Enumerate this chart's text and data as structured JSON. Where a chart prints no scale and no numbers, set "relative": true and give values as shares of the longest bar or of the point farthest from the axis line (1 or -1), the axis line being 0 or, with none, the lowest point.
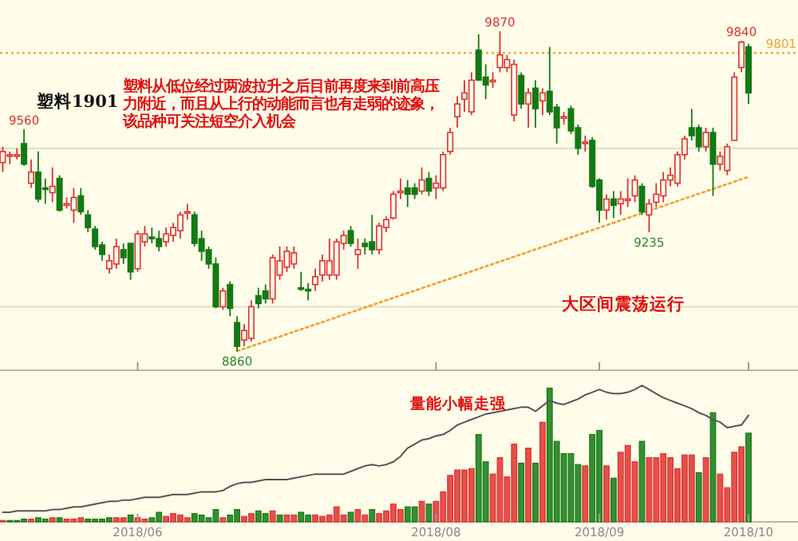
{
  "chart_data": [
    {
      "type": "candlestick",
      "title": "塑料1901",
      "categories": [
        null,
        null,
        null,
        null,
        null,
        null,
        null,
        null,
        null,
        null,
        null,
        null,
        null,
        null,
        null,
        null,
        null,
        null,
        null,
        "2018/06",
        null,
        null,
        null,
        null,
        null,
        null,
        null,
        null,
        null,
        null,
        null,
        null,
        null,
        null,
        null,
        null,
        null,
        null,
        null,
        null,
        null,
        null,
        null,
        null,
        null,
        null,
        null,
        null,
        null,
        null,
        null,
        null,
        null,
        null,
        null,
        null,
        null,
        null,
        null,
        null,
        null,
        "2018/08",
        null,
        null,
        null,
        null,
        null,
        null,
        null,
        null,
        null,
        null,
        null,
        null,
        null,
        null,
        null,
        null,
        null,
        null,
        null,
        null,
        null,
        null,
        "2018/09",
        null,
        null,
        null,
        null,
        null,
        null,
        null,
        null,
        null,
        null,
        null,
        null,
        null,
        null,
        null,
        null,
        null,
        null,
        null,
        null,
        "2018/10"
      ],
      "ohlc": [
        [
          9455,
          9505,
          9425,
          9490
        ],
        [
          9475,
          9490,
          9450,
          9480
        ],
        [
          9475,
          9500,
          9465,
          9480
        ],
        [
          9515,
          9560,
          9445,
          9450
        ],
        [
          9390,
          9465,
          9375,
          9425
        ],
        [
          9425,
          9490,
          9330,
          9340
        ],
        [
          9375,
          9405,
          9325,
          9370
        ],
        [
          9360,
          9440,
          9330,
          9380
        ],
        [
          9405,
          9415,
          9300,
          9305
        ],
        [
          9320,
          9345,
          9310,
          9325
        ],
        [
          9305,
          9375,
          9265,
          9345
        ],
        [
          9350,
          9375,
          9290,
          9300
        ],
        [
          9290,
          9305,
          9235,
          9250
        ],
        [
          9245,
          9255,
          9180,
          9190
        ],
        [
          9195,
          9205,
          9145,
          9165
        ],
        [
          9120,
          9165,
          9105,
          9145
        ],
        [
          9135,
          9215,
          9120,
          9190
        ],
        [
          9180,
          9200,
          9135,
          9155
        ],
        [
          9200,
          9200,
          9085,
          9110
        ],
        [
          9120,
          9240,
          9110,
          9230
        ],
        [
          9205,
          9255,
          9190,
          9230
        ],
        [
          9220,
          9250,
          9200,
          9215
        ],
        [
          9215,
          9240,
          9175,
          9190
        ],
        [
          9205,
          9250,
          9190,
          9230
        ],
        [
          9225,
          9265,
          9205,
          9250
        ],
        [
          9240,
          9300,
          9215,
          9290
        ],
        [
          9295,
          9325,
          9275,
          9300
        ],
        [
          9290,
          9300,
          9190,
          9200
        ],
        [
          9215,
          9240,
          9145,
          9175
        ],
        [
          9180,
          9190,
          9120,
          9135
        ],
        [
          9135,
          9155,
          8995,
          9000
        ],
        [
          9000,
          9060,
          8990,
          9050
        ],
        [
          9070,
          9080,
          8970,
          8995
        ],
        [
          8950,
          8970,
          8860,
          8875
        ],
        [
          8895,
          8945,
          8875,
          8925
        ],
        [
          8900,
          9020,
          8890,
          9000
        ],
        [
          9035,
          9060,
          8995,
          9010
        ],
        [
          9050,
          9070,
          9010,
          9025
        ],
        [
          9025,
          9165,
          9010,
          9155
        ],
        [
          9100,
          9190,
          9085,
          9145
        ],
        [
          9125,
          9190,
          9110,
          9175
        ],
        [
          9135,
          9190,
          9120,
          9170
        ],
        [
          9060,
          9110,
          9050,
          9055
        ],
        [
          9055,
          9075,
          9020,
          9050
        ],
        [
          9070,
          9120,
          9050,
          9095
        ],
        [
          9100,
          9165,
          9080,
          9145
        ],
        [
          9100,
          9215,
          9085,
          9145
        ],
        [
          9100,
          9215,
          9085,
          9205
        ],
        [
          9200,
          9240,
          9180,
          9225
        ],
        [
          9240,
          9255,
          9190,
          9200
        ],
        [
          9165,
          9215,
          9120,
          9180
        ],
        [
          9200,
          9215,
          9165,
          9190
        ],
        [
          9205,
          9290,
          9165,
          9180
        ],
        [
          9180,
          9265,
          9165,
          9255
        ],
        [
          9250,
          9285,
          9235,
          9275
        ],
        [
          9280,
          9365,
          9275,
          9355
        ],
        [
          9360,
          9405,
          9340,
          9365
        ],
        [
          9375,
          9400,
          9315,
          9355
        ],
        [
          9375,
          9390,
          9340,
          9355
        ],
        [
          9365,
          9440,
          9355,
          9400
        ],
        [
          9405,
          9425,
          9350,
          9365
        ],
        [
          9375,
          9415,
          9340,
          9390
        ],
        [
          9375,
          9490,
          9365,
          9480
        ],
        [
          9490,
          9565,
          9480,
          9550
        ],
        [
          9600,
          9665,
          9565,
          9640
        ],
        [
          9655,
          9715,
          9615,
          9675
        ],
        [
          9615,
          9740,
          9605,
          9715
        ],
        [
          9810,
          9860,
          9715,
          9715
        ],
        [
          9725,
          9765,
          9655,
          9700
        ],
        [
          9710,
          9740,
          9690,
          9715
        ],
        [
          9755,
          9870,
          9740,
          9795
        ],
        [
          9755,
          9795,
          9740,
          9780
        ],
        [
          9605,
          9780,
          9585,
          9765
        ],
        [
          9730,
          9740,
          9625,
          9640
        ],
        [
          9640,
          9690,
          9565,
          9675
        ],
        [
          9690,
          9715,
          9565,
          9625
        ],
        [
          9650,
          9690,
          9605,
          9675
        ],
        [
          9680,
          9820,
          9605,
          9615
        ],
        [
          9630,
          9640,
          9515,
          9565
        ],
        [
          9595,
          9615,
          9575,
          9600
        ],
        [
          9625,
          9635,
          9545,
          9555
        ],
        [
          9565,
          9575,
          9480,
          9500
        ],
        [
          9515,
          9540,
          9490,
          9520
        ],
        [
          9525,
          9535,
          9375,
          9380
        ],
        [
          9400,
          9405,
          9265,
          9305
        ],
        [
          9305,
          9355,
          9275,
          9340
        ],
        [
          9340,
          9365,
          9280,
          9320
        ],
        [
          9325,
          9365,
          9290,
          9340
        ],
        [
          9335,
          9405,
          9315,
          9340
        ],
        [
          9350,
          9415,
          9330,
          9400
        ],
        [
          9380,
          9390,
          9290,
          9300
        ],
        [
          9290,
          9340,
          9235,
          9325
        ],
        [
          9330,
          9390,
          9315,
          9355
        ],
        [
          9350,
          9425,
          9330,
          9400
        ],
        [
          9400,
          9440,
          9380,
          9415
        ],
        [
          9390,
          9490,
          9380,
          9480
        ],
        [
          9480,
          9540,
          9465,
          9530
        ],
        [
          9565,
          9625,
          9525,
          9540
        ],
        [
          9565,
          9575,
          9490,
          9505
        ],
        [
          9505,
          9565,
          9490,
          9550
        ],
        [
          9550,
          9565,
          9350,
          9450
        ],
        [
          9450,
          9490,
          9430,
          9475
        ],
        [
          9430,
          9515,
          9415,
          9505
        ],
        [
          9525,
          9740,
          9525,
          9725
        ],
        [
          9755,
          9840,
          9740,
          9835
        ],
        [
          9820,
          9830,
          9640,
          9675
        ]
      ],
      "colors": [
        "#e0312f",
        "#e0312f",
        "#e0312f",
        "#137a13",
        "#e0312f",
        "#137a13",
        "#137a13",
        "#e0312f",
        "#137a13",
        "#e0312f",
        "#e0312f",
        "#137a13",
        "#137a13",
        "#137a13",
        "#137a13",
        "#e0312f",
        "#e0312f",
        "#137a13",
        "#137a13",
        "#e0312f",
        "#e0312f",
        "#137a13",
        "#137a13",
        "#e0312f",
        "#e0312f",
        "#e0312f",
        "#e0312f",
        "#137a13",
        "#137a13",
        "#137a13",
        "#137a13",
        "#e0312f",
        "#137a13",
        "#137a13",
        "#e0312f",
        "#e0312f",
        "#137a13",
        "#137a13",
        "#e0312f",
        "#e0312f",
        "#e0312f",
        "#e0312f",
        "#137a13",
        "#137a13",
        "#e0312f",
        "#e0312f",
        "#e0312f",
        "#e0312f",
        "#e0312f",
        "#137a13",
        "#e0312f",
        "#137a13",
        "#137a13",
        "#e0312f",
        "#e0312f",
        "#e0312f",
        "#e0312f",
        "#137a13",
        "#137a13",
        "#e0312f",
        "#137a13",
        "#e0312f",
        "#e0312f",
        "#e0312f",
        "#e0312f",
        "#e0312f",
        "#e0312f",
        "#137a13",
        "#137a13",
        "#e0312f",
        "#e0312f",
        "#e0312f",
        "#e0312f",
        "#137a13",
        "#e0312f",
        "#137a13",
        "#e0312f",
        "#137a13",
        "#137a13",
        "#e0312f",
        "#137a13",
        "#137a13",
        "#e0312f",
        "#137a13",
        "#137a13",
        "#e0312f",
        "#137a13",
        "#e0312f",
        "#e0312f",
        "#e0312f",
        "#137a13",
        "#e0312f",
        "#e0312f",
        "#e0312f",
        "#e0312f",
        "#e0312f",
        "#e0312f",
        "#137a13",
        "#137a13",
        "#e0312f",
        "#137a13",
        "#e0312f",
        "#e0312f",
        "#e0312f",
        "#e0312f",
        "#137a13"
      ],
      "yticks": [
        {
          "value": 9000,
          "label": null
        },
        {
          "value": 9500,
          "label": null
        }
      ],
      "grid": "y",
      "tick_labels": false,
      "ref_lines": [
        {
          "axis": "y",
          "value": 9801,
          "label": "9801",
          "color": "#f0a030",
          "line_style": "dotted"
        }
      ],
      "series": [
        {
          "type": "line",
          "color": "#f0a030",
          "line_style": "dotted",
          "values": [
            null,
            null,
            null,
            null,
            null,
            null,
            null,
            null,
            null,
            null,
            null,
            null,
            null,
            null,
            null,
            null,
            null,
            null,
            null,
            null,
            null,
            null,
            null,
            null,
            null,
            null,
            null,
            null,
            null,
            null,
            null,
            null,
            null,
            8860,
            null,
            null,
            null,
            null,
            null,
            null,
            null,
            null,
            null,
            null,
            null,
            null,
            null,
            null,
            null,
            null,
            null,
            null,
            null,
            null,
            null,
            null,
            null,
            null,
            null,
            null,
            null,
            null,
            null,
            null,
            null,
            null,
            null,
            null,
            null,
            null,
            null,
            null,
            null,
            null,
            null,
            null,
            null,
            null,
            null,
            null,
            null,
            null,
            null,
            null,
            null,
            null,
            null,
            null,
            null,
            null,
            null,
            null,
            null,
            null,
            null,
            null,
            null,
            null,
            null,
            null,
            null,
            null,
            null,
            null,
            null,
            9410
          ]
        }
      ],
      "annotations": [
        "塑料从低位经过两波拉升之后目前再度来到前高压力附近，而且从上行的动能而言也有走弱的迹象，该品种可关注短空介入机会",
        "大区间震荡运行",
        {
          "text": "9560",
          "y": 9560
        },
        {
          "text": "9870",
          "y": 9870
        },
        {
          "text": "8860",
          "y": 8860
        },
        {
          "text": "9235",
          "y": 9235
        },
        {
          "text": "9840",
          "y": 9840
        }
      ]
    },
    {
      "type": "bar",
      "relative": true,
      "categories": [
        null,
        null,
        null,
        null,
        null,
        null,
        null,
        null,
        null,
        null,
        null,
        null,
        null,
        null,
        null,
        null,
        null,
        null,
        null,
        "2018/06",
        null,
        null,
        null,
        null,
        null,
        null,
        null,
        null,
        null,
        null,
        null,
        null,
        null,
        null,
        null,
        null,
        null,
        null,
        null,
        null,
        null,
        null,
        null,
        null,
        null,
        null,
        null,
        null,
        null,
        null,
        null,
        null,
        null,
        null,
        null,
        null,
        null,
        null,
        null,
        null,
        null,
        "2018/08",
        null,
        null,
        null,
        null,
        null,
        null,
        null,
        null,
        null,
        null,
        null,
        null,
        null,
        null,
        null,
        null,
        null,
        null,
        null,
        null,
        null,
        null,
        "2018/09",
        null,
        null,
        null,
        null,
        null,
        null,
        null,
        null,
        null,
        null,
        null,
        null,
        null,
        null,
        null,
        null,
        null,
        null,
        null,
        null,
        "2018/10"
      ],
      "series": [
        {
          "type": "bar",
          "values": [
            0.01,
            0.01,
            0.01,
            0.02,
            0.02,
            0.03,
            0.02,
            0.03,
            0.03,
            0.02,
            0.02,
            0.03,
            0.02,
            0.02,
            0.02,
            0.03,
            0.03,
            0.03,
            0.05,
            0.03,
            0.02,
            0.03,
            0.07,
            0.04,
            0.06,
            0.05,
            0.03,
            0.06,
            0.05,
            0.03,
            0.09,
            0.03,
            0.05,
            0.09,
            0.04,
            0.06,
            0.08,
            0.06,
            0.08,
            0.05,
            0.05,
            0.05,
            0.07,
            0.05,
            0.05,
            0.04,
            0.05,
            0.11,
            0.05,
            0.07,
            0.09,
            0.05,
            0.09,
            0.06,
            0.08,
            0.13,
            0.09,
            0.11,
            0.11,
            0.15,
            0.13,
            0.15,
            0.22,
            0.34,
            0.38,
            0.38,
            0.39,
            0.64,
            0.44,
            0.35,
            0.47,
            0.33,
            0.57,
            0.43,
            0.54,
            0.43,
            0.73,
            0.98,
            0.59,
            0.5,
            0.5,
            0.42,
            0.41,
            0.64,
            0.67,
            0.41,
            0.32,
            0.51,
            0.56,
            0.44,
            0.59,
            0.47,
            0.47,
            0.5,
            0.47,
            0.39,
            0.49,
            0.49,
            0.36,
            0.47,
            0.8,
            0.35,
            0.25,
            0.51,
            0.55,
            0.65
          ],
          "colors": [
            "#e0312f",
            "#137a13",
            "#137a13",
            "#137a13",
            "#e0312f",
            "#137a13",
            "#137a13",
            "#e0312f",
            "#137a13",
            "#e0312f",
            "#e0312f",
            "#e0312f",
            "#137a13",
            "#137a13",
            "#137a13",
            "#137a13",
            "#e0312f",
            "#e0312f",
            "#137a13",
            "#e0312f",
            "#e0312f",
            "#137a13",
            "#137a13",
            "#e0312f",
            "#e0312f",
            "#e0312f",
            "#e0312f",
            "#137a13",
            "#137a13",
            "#137a13",
            "#137a13",
            "#e0312f",
            "#137a13",
            "#137a13",
            "#e0312f",
            "#e0312f",
            "#137a13",
            "#137a13",
            "#e0312f",
            "#137a13",
            "#e0312f",
            "#e0312f",
            "#137a13",
            "#137a13",
            "#e0312f",
            "#e0312f",
            "#e0312f",
            "#e0312f",
            "#e0312f",
            "#137a13",
            "#e0312f",
            "#e0312f",
            "#137a13",
            "#e0312f",
            "#e0312f",
            "#e0312f",
            "#e0312f",
            "#137a13",
            "#137a13",
            "#e0312f",
            "#137a13",
            "#e0312f",
            "#e0312f",
            "#e0312f",
            "#e0312f",
            "#e0312f",
            "#e0312f",
            "#137a13",
            "#137a13",
            "#e0312f",
            "#e0312f",
            "#e0312f",
            "#e0312f",
            "#137a13",
            "#e0312f",
            "#137a13",
            "#e0312f",
            "#137a13",
            "#137a13",
            "#137a13",
            "#137a13",
            "#137a13",
            "#e0312f",
            "#137a13",
            "#137a13",
            "#e0312f",
            "#137a13",
            "#e0312f",
            "#e0312f",
            "#e0312f",
            "#137a13",
            "#e0312f",
            "#e0312f",
            "#e0312f",
            "#e0312f",
            "#e0312f",
            "#e0312f",
            "#e0312f",
            "#137a13",
            "#e0312f",
            "#137a13",
            "#e0312f",
            "#e0312f",
            "#e0312f",
            "#e0312f",
            "#137a13"
          ]
        },
        {
          "type": "line",
          "color": "#555555",
          "values": [
            0.07,
            0.07,
            0.08,
            0.08,
            0.08,
            0.08,
            0.08,
            0.09,
            0.09,
            0.1,
            0.11,
            0.11,
            0.12,
            0.13,
            0.14,
            0.15,
            0.15,
            0.16,
            0.16,
            0.17,
            0.18,
            0.18,
            0.18,
            0.19,
            0.2,
            0.2,
            0.2,
            0.21,
            0.22,
            0.22,
            0.22,
            0.23,
            0.26,
            0.28,
            0.29,
            0.29,
            0.3,
            0.31,
            0.31,
            0.31,
            0.31,
            0.32,
            0.33,
            0.34,
            0.35,
            0.35,
            0.35,
            0.35,
            0.35,
            0.37,
            0.39,
            0.41,
            0.42,
            0.41,
            0.42,
            0.44,
            0.48,
            0.54,
            0.57,
            0.6,
            0.61,
            0.63,
            0.64,
            0.67,
            0.71,
            0.73,
            0.75,
            0.77,
            0.79,
            0.8,
            0.81,
            0.82,
            0.83,
            0.84,
            0.84,
            0.81,
            0.85,
            0.89,
            0.87,
            0.86,
            0.88,
            0.9,
            0.93,
            0.95,
            0.97,
            0.95,
            0.94,
            0.94,
            0.95,
            0.97,
            1,
            0.97,
            0.94,
            0.91,
            0.89,
            0.87,
            0.85,
            0.83,
            0.8,
            0.78,
            0.75,
            0.73,
            0.69,
            0.7,
            0.71,
            0.78
          ]
        }
      ],
      "annotations": [
        "量能小幅走强"
      ]
    }
  ]
}
